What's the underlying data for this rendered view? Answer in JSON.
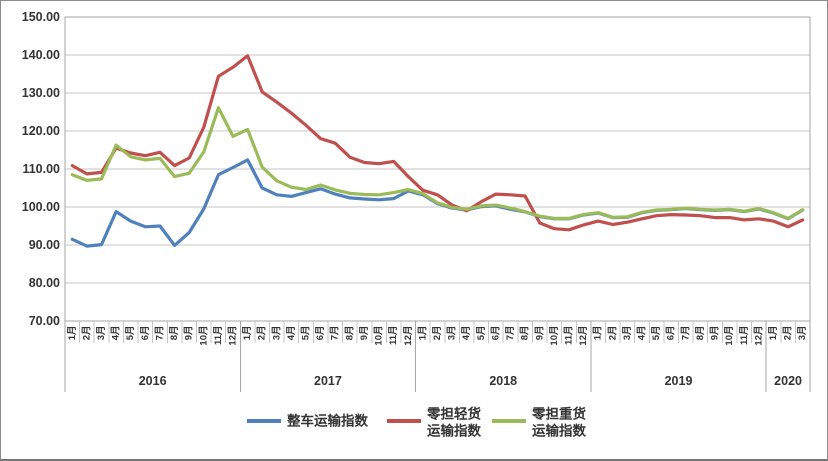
{
  "chart_data": {
    "type": "line",
    "title": "",
    "y_axis": {
      "min": 70,
      "max": 150,
      "step": 10,
      "tick_labels": [
        "150.00",
        "140.00",
        "130.00",
        "120.00",
        "110.00",
        "100.00",
        "90.00",
        "80.00",
        "70.00"
      ]
    },
    "x_axis": {
      "years": [
        {
          "label": "2016",
          "months": [
            "1月",
            "2月",
            "3月",
            "4月",
            "5月",
            "6月",
            "7月",
            "8月",
            "9月",
            "10月",
            "11月",
            "12月"
          ]
        },
        {
          "label": "2017",
          "months": [
            "1月",
            "2月",
            "3月",
            "4月",
            "5月",
            "6月",
            "7月",
            "8月",
            "9月",
            "10月",
            "11月",
            "12月"
          ]
        },
        {
          "label": "2018",
          "months": [
            "1月",
            "2月",
            "3月",
            "4月",
            "5月",
            "6月",
            "7月",
            "8月",
            "9月",
            "10月",
            "11月",
            "12月"
          ]
        },
        {
          "label": "2019",
          "months": [
            "1月",
            "2月",
            "3月",
            "4月",
            "5月",
            "6月",
            "7月",
            "8月",
            "9月",
            "10月",
            "11月",
            "12月"
          ]
        },
        {
          "label": "2020",
          "months": [
            "1月",
            "2月",
            "3月"
          ]
        }
      ]
    },
    "series": [
      {
        "name": "整车运输指数",
        "legend_lines": [
          "整车运输指数"
        ],
        "color": "#4F81BD",
        "values": [
          91.5,
          89.7,
          90.1,
          98.8,
          96.3,
          94.8,
          95.0,
          89.9,
          93.3,
          99.5,
          108.5,
          110.4,
          112.4,
          105.0,
          103.2,
          102.8,
          103.8,
          104.8,
          103.4,
          102.4,
          102.1,
          101.9,
          102.2,
          104.2,
          103.2,
          100.9,
          99.7,
          99.2,
          100.1,
          100.3,
          99.4,
          98.7,
          97.5,
          96.9,
          96.9,
          97.9,
          98.4,
          97.2,
          97.3,
          98.5,
          99.1,
          99.3,
          99.6,
          99.3,
          99.1,
          99.3,
          98.8,
          99.5,
          98.4,
          96.9,
          99.2
        ]
      },
      {
        "name": "零担轻货运输指数",
        "legend_lines": [
          "零担轻货",
          "运输指数"
        ],
        "color": "#C0504D",
        "values": [
          110.9,
          108.7,
          109.1,
          115.5,
          114.2,
          113.5,
          114.4,
          110.9,
          112.9,
          121.0,
          134.4,
          136.8,
          139.8,
          130.3,
          127.6,
          124.7,
          121.5,
          118.0,
          116.8,
          113.1,
          111.7,
          111.4,
          112.0,
          108.0,
          104.4,
          103.2,
          100.5,
          99.0,
          101.4,
          103.4,
          103.2,
          102.9,
          95.8,
          94.3,
          94.0,
          95.3,
          96.3,
          95.4,
          96.0,
          96.9,
          97.7,
          98.0,
          97.9,
          97.7,
          97.2,
          97.2,
          96.6,
          96.9,
          96.3,
          94.8,
          96.6
        ]
      },
      {
        "name": "零担重货运输指数",
        "legend_lines": [
          "零担重货",
          "运输指数"
        ],
        "color": "#9BBB59",
        "values": [
          108.5,
          107.0,
          107.4,
          116.3,
          113.2,
          112.4,
          112.8,
          108.0,
          108.9,
          114.5,
          126.1,
          118.6,
          120.4,
          110.5,
          106.9,
          105.2,
          104.6,
          105.8,
          104.5,
          103.6,
          103.3,
          103.2,
          103.8,
          104.6,
          103.5,
          101.1,
          99.9,
          99.4,
          100.3,
          100.5,
          99.7,
          98.8,
          97.6,
          97.0,
          97.0,
          98.0,
          98.5,
          97.3,
          97.4,
          98.6,
          99.2,
          99.4,
          99.7,
          99.4,
          99.2,
          99.4,
          98.9,
          99.6,
          98.5,
          97.0,
          99.3
        ]
      }
    ],
    "legend_position": "bottom",
    "grid": true,
    "style": {
      "background": "#FFFFFF",
      "grid_color": "#C6C6C6",
      "axis_color": "#A6A6A6",
      "text_color": "#333333",
      "line_width": 3.2
    }
  }
}
